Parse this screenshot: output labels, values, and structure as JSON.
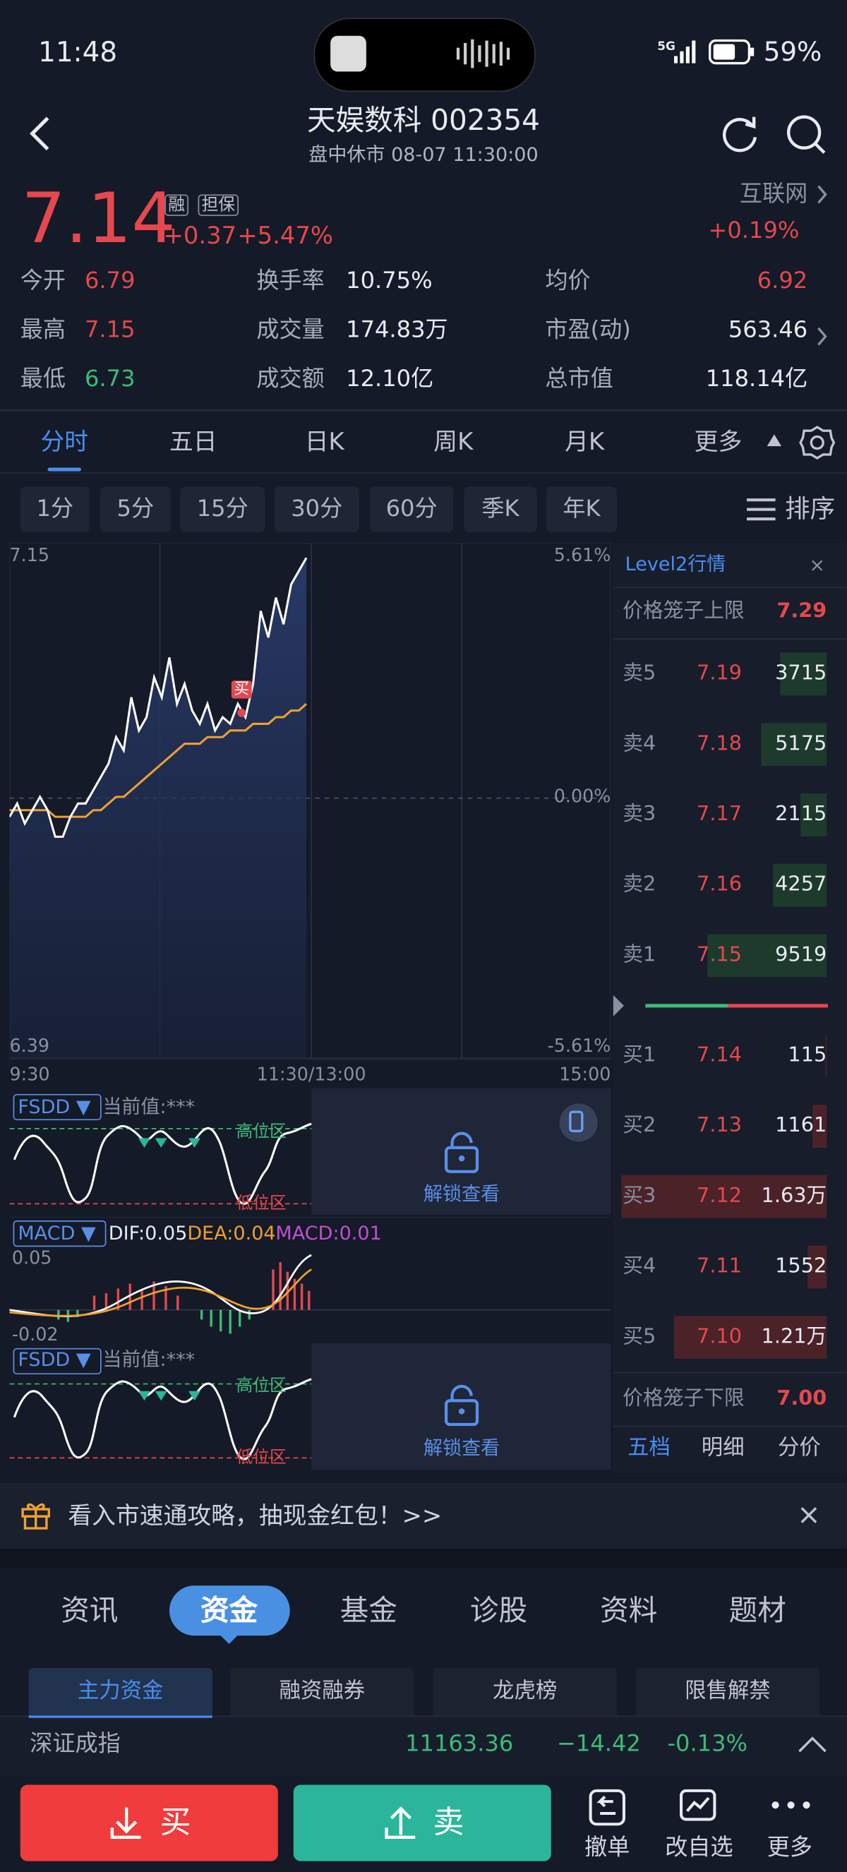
{
  "status": {
    "time": "11:48",
    "net": "5G",
    "battery": "59%"
  },
  "header": {
    "title": "天娱数科 002354",
    "subtitle": "盘中休市 08-07 11:30:00"
  },
  "quote": {
    "price": "7.14",
    "tags": [
      "融",
      "担保"
    ],
    "change": "+0.37",
    "pct": "+5.47%",
    "sector": "互联网",
    "sector_pct": "+0.19%"
  },
  "stats": [
    {
      "label": "今开",
      "value": "6.79",
      "color": "#e5484d"
    },
    {
      "label": "换手率",
      "value": "10.75%",
      "color": "#e8ebf2"
    },
    {
      "label": "均价",
      "value": "6.92",
      "color": "#e5484d"
    },
    {
      "label": "最高",
      "value": "7.15",
      "color": "#e5484d"
    },
    {
      "label": "成交量",
      "value": "174.83万",
      "color": "#e8ebf2"
    },
    {
      "label": "市盈(动)",
      "value": "563.46",
      "color": "#e8ebf2"
    },
    {
      "label": "最低",
      "value": "6.73",
      "color": "#3dbb78"
    },
    {
      "label": "成交额",
      "value": "12.10亿",
      "color": "#e8ebf2"
    },
    {
      "label": "总市值",
      "value": "118.14亿",
      "color": "#e8ebf2"
    }
  ],
  "tabs": [
    "分时",
    "五日",
    "日K",
    "周K",
    "月K",
    "更多"
  ],
  "periods": [
    "1分",
    "5分",
    "15分",
    "30分",
    "60分",
    "季K",
    "年K"
  ],
  "sort": "排序",
  "chart": {
    "ylim": [
      6.39,
      7.15
    ],
    "pct_top": "5.61%",
    "pct_zero": "0.00%",
    "pct_bottom": "-5.61%",
    "times": [
      "9:30",
      "11:30/13:00",
      "15:00"
    ],
    "buy_tag": "买",
    "price": [
      6.75,
      6.77,
      6.74,
      6.76,
      6.78,
      6.76,
      6.72,
      6.72,
      6.75,
      6.77,
      6.77,
      6.79,
      6.81,
      6.83,
      6.87,
      6.85,
      6.93,
      6.88,
      6.9,
      6.96,
      6.93,
      6.99,
      6.92,
      6.95,
      6.91,
      6.89,
      6.92,
      6.88,
      6.9,
      6.89,
      6.92,
      6.9,
      6.95,
      7.06,
      7.02,
      7.08,
      7.04,
      7.1,
      7.12,
      7.14
    ],
    "avg": [
      6.76,
      6.76,
      6.76,
      6.76,
      6.76,
      6.76,
      6.75,
      6.75,
      6.75,
      6.75,
      6.75,
      6.76,
      6.76,
      6.77,
      6.78,
      6.78,
      6.79,
      6.8,
      6.81,
      6.82,
      6.83,
      6.84,
      6.85,
      6.86,
      6.86,
      6.86,
      6.87,
      6.87,
      6.87,
      6.88,
      6.88,
      6.88,
      6.89,
      6.89,
      6.89,
      6.9,
      6.9,
      6.91,
      6.91,
      6.92
    ]
  },
  "indicators": {
    "fsdd": "FSDD ▼",
    "current": "当前值:***",
    "high": "高位区",
    "low": "低位区",
    "unlock": "解锁查看",
    "macd": "MACD ▼",
    "dif": "DIF:0.05",
    "dea": "DEA:0.04",
    "macd_value": "MACD:0.01",
    "macd_top": "0.05",
    "macd_bottom": "-0.02"
  },
  "orderbook": {
    "title": "Level2行情",
    "upper": {
      "label": "价格笼子上限",
      "value": "7.29"
    },
    "asks": [
      {
        "label": "卖5",
        "price": "7.19",
        "volume": 3715
      },
      {
        "label": "卖4",
        "price": "7.18",
        "volume": 5175
      },
      {
        "label": "卖3",
        "price": "7.17",
        "volume": 2115
      },
      {
        "label": "卖2",
        "price": "7.16",
        "volume": 4257
      },
      {
        "label": "卖1",
        "price": "7.15",
        "volume": 9519
      }
    ],
    "bids": [
      {
        "label": "买1",
        "price": "7.14",
        "volume": 115
      },
      {
        "label": "买2",
        "price": "7.13",
        "volume": 1161
      },
      {
        "label": "买3",
        "price": "7.12",
        "volume": {
          "value": 16300,
          "label": "1.63万"
        }
      },
      {
        "label": "买4",
        "price": "7.11",
        "volume": 1552
      },
      {
        "label": "买5",
        "price": "7.10",
        "volume": {
          "value": 12100,
          "label": "1.21万"
        }
      }
    ],
    "lower": {
      "label": "价格笼子下限",
      "value": "7.00"
    },
    "tabs": [
      "五档",
      "明细",
      "分价"
    ]
  },
  "banner": "看入市速通攻略，抽现金红包！>>",
  "bottom_tabs": [
    "资讯",
    "资金",
    "基金",
    "诊股",
    "资料",
    "题材"
  ],
  "sub_tabs": [
    "主力资金",
    "融资融券",
    "龙虎榜",
    "限售解禁"
  ],
  "index": {
    "name": "深证成指",
    "value": "11163.36",
    "change": "−14.42",
    "pct": "-0.13%"
  },
  "actions": {
    "buy": "买",
    "sell": "卖",
    "items": [
      "撤单",
      "改自选",
      "更多"
    ]
  }
}
